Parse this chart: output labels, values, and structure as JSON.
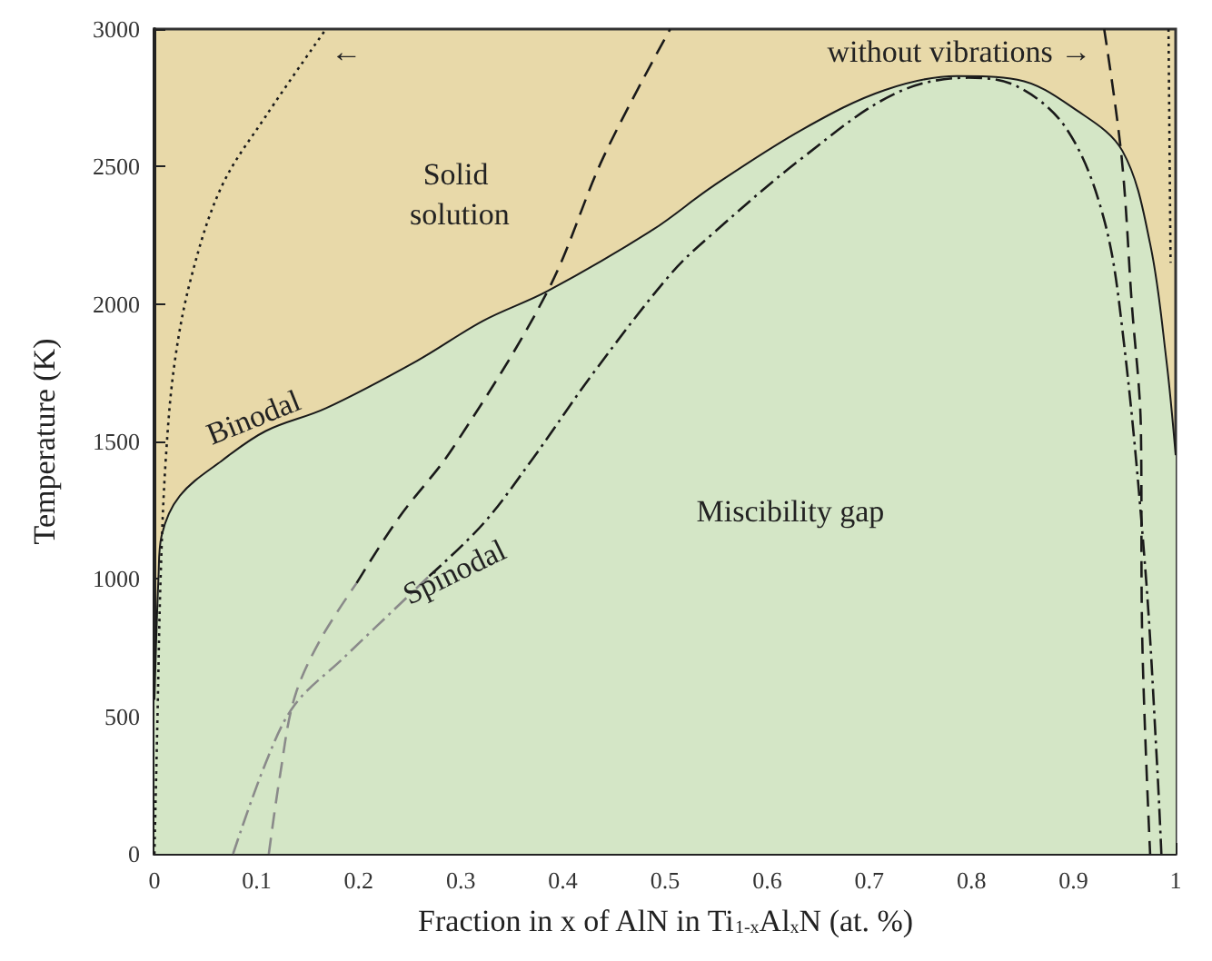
{
  "chart_data": {
    "type": "line",
    "xlabel": "Fraction in x of AlN in Ti$_{1-x}$Al$_{x}$N (at. %)",
    "ylabel": "Temperature (K)",
    "xlim": [
      0,
      1
    ],
    "ylim": [
      0,
      3000
    ],
    "xticks": [
      0,
      0.1,
      0.2,
      0.3,
      0.4,
      0.5,
      0.6,
      0.7,
      0.8,
      0.9,
      1
    ],
    "yticks": [
      0,
      500,
      1000,
      1500,
      2000,
      2500,
      3000
    ],
    "marker": "none",
    "bands": [
      {
        "axis": "y",
        "from": 0,
        "to": 3000,
        "color": "#e8d9a9"
      }
    ],
    "series": [
      {
        "type": "area",
        "color": "#d4e6c6",
        "line_style": "solid",
        "x": [
          0,
          0.004,
          0.007,
          0.025,
          0.066,
          0.109,
          0.168,
          0.257,
          0.322,
          0.385,
          0.488,
          0.547,
          0.636,
          0.715,
          0.786,
          0.845,
          0.904,
          0.948,
          0.975,
          0.991,
          1
        ],
        "values": [
          560,
          1010,
          1157,
          1303,
          1430,
          1538,
          1621,
          1793,
          1939,
          2047,
          2270,
          2429,
          2638,
          2778,
          2829,
          2816,
          2702,
          2556,
          2219,
          1793,
          1450
        ]
      },
      {
        "color": "#8a8a8a",
        "line_style": "dashdot",
        "x": [
          0.077,
          0.109,
          0.137,
          0.185,
          0.269
        ],
        "values": [
          0,
          331,
          540,
          712,
          1010
        ]
      },
      {
        "color": "#1a1a1a",
        "line_style": "dashdot",
        "x": [
          0.269,
          0.322,
          0.369,
          0.43,
          0.506,
          0.547,
          0.636,
          0.725,
          0.797,
          0.845,
          0.893,
          0.929,
          0.948,
          0.97,
          0.982,
          0.986
        ],
        "values": [
          1010,
          1201,
          1430,
          1750,
          2111,
          2257,
          2536,
          2765,
          2823,
          2791,
          2638,
          2320,
          1901,
          1049,
          312,
          0
        ]
      },
      {
        "color": "#8a8a8a",
        "line_style": "dashed",
        "x": [
          0.112,
          0.123,
          0.137,
          0.162,
          0.198
        ],
        "values": [
          0,
          286,
          566,
          776,
          985
        ]
      },
      {
        "color": "#1a1a1a",
        "line_style": "dashed",
        "x": [
          0.198,
          0.239,
          0.292,
          0.385,
          0.44,
          0.505
        ],
        "values": [
          985,
          1221,
          1475,
          2047,
          2537,
          3000
        ]
      },
      {
        "color": "#1a1a1a",
        "line_style": "dashed",
        "x": [
          0.93,
          0.947,
          0.957,
          0.966,
          0.967,
          0.975
        ],
        "values": [
          3000,
          2537,
          2003,
          1538,
          839,
          0
        ]
      },
      {
        "color": "#1a1a1a",
        "line_style": "dotted",
        "x": [
          0,
          0.003,
          0.006,
          0.011,
          0.02,
          0.037,
          0.066,
          0.109,
          0.168
        ],
        "values": [
          0,
          500,
          1000,
          1430,
          1793,
          2111,
          2429,
          2683,
          3000
        ]
      },
      {
        "color": "#1a1a1a",
        "line_style": "dotted",
        "x": [
          0.993,
          0.995
        ],
        "values": [
          3000,
          2150
        ]
      }
    ],
    "annotations": [
      "Solid solution",
      "Binodal",
      "Spinodal",
      "Miscibility gap",
      "without vibrations →",
      "←"
    ]
  }
}
